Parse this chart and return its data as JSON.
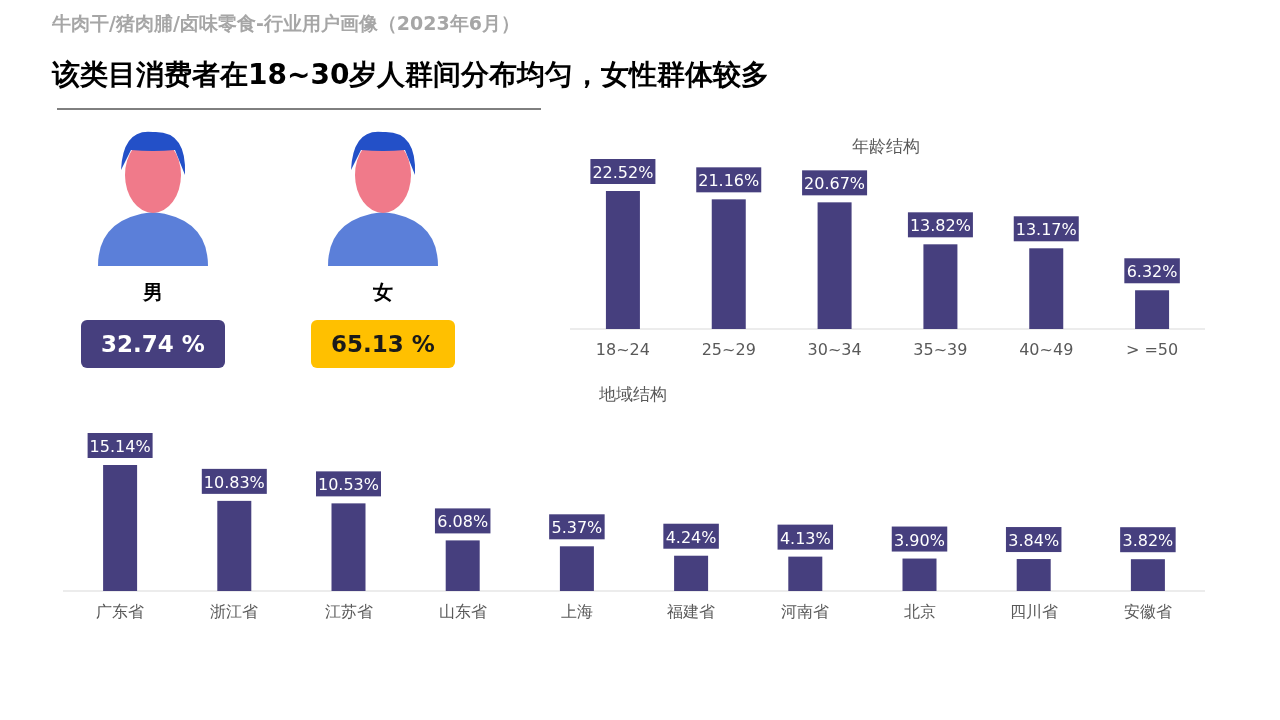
{
  "chart_data": [
    {
      "type": "other",
      "title": "牛肉干/猪肉脯/卤味零食-行业用户画像（2023年6月）",
      "subtitle": "该类目消费者在18~30岁人群间分布均匀，女性群体较多",
      "categories": [
        "男",
        "女"
      ],
      "values": [
        32.74,
        65.13
      ],
      "value_labels": [
        "32.74 %",
        "65.13 %"
      ],
      "colors": [
        "#463f7e",
        "#ffc000"
      ]
    },
    {
      "type": "bar",
      "title": "年龄结构",
      "categories": [
        "18~24",
        "25~29",
        "30~34",
        "35~39",
        "40~49",
        "> =50"
      ],
      "values": [
        22.52,
        21.16,
        20.67,
        13.82,
        13.17,
        6.32
      ],
      "value_labels": [
        "22.52%",
        "21.16%",
        "20.67%",
        "13.82%",
        "13.17%",
        "6.32%"
      ],
      "color": "#463f7e"
    },
    {
      "type": "bar",
      "title": "地域结构",
      "categories": [
        "广东省",
        "浙江省",
        "江苏省",
        "山东省",
        "上海",
        "福建省",
        "河南省",
        "北京",
        "四川省",
        "安徽省"
      ],
      "values": [
        15.14,
        10.83,
        10.53,
        6.08,
        5.37,
        4.24,
        4.13,
        3.9,
        3.84,
        3.82
      ],
      "value_labels": [
        "15.14%",
        "10.83%",
        "10.53%",
        "6.08%",
        "5.37%",
        "4.24%",
        "4.13%",
        "3.90%",
        "3.84%",
        "3.82%"
      ],
      "color": "#463f7e"
    }
  ]
}
